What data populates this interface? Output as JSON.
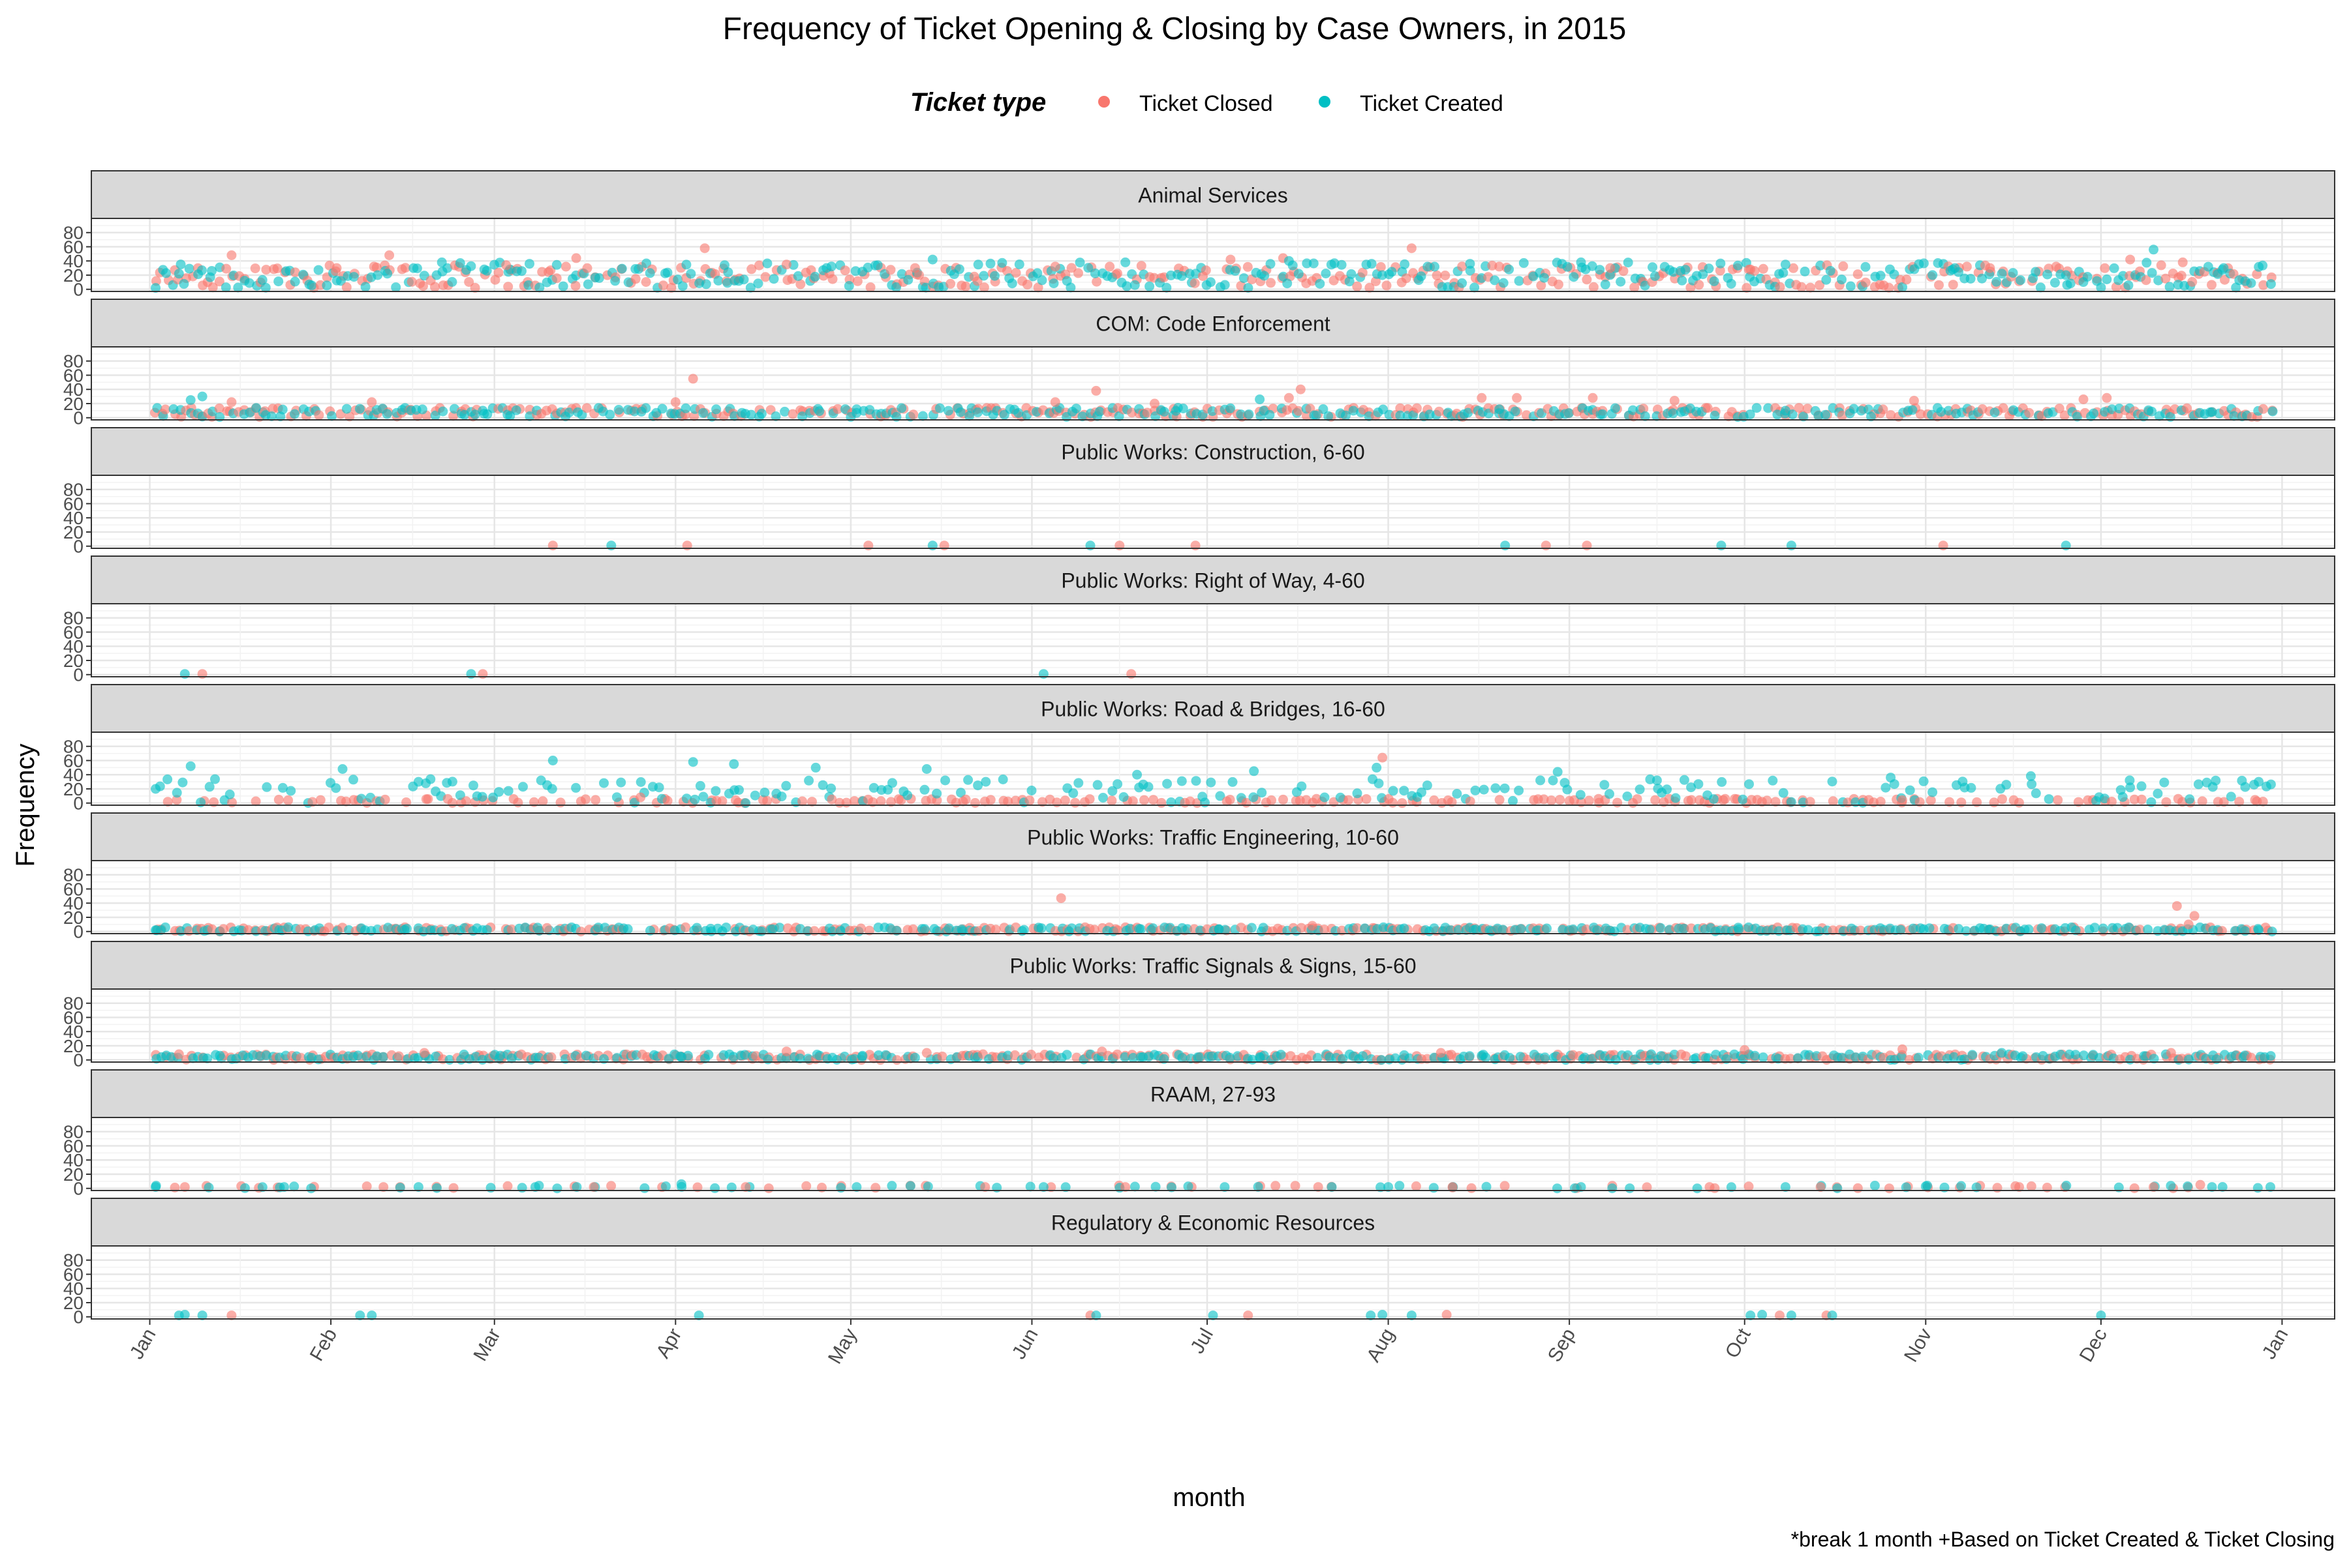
{
  "chart_data": {
    "type": "scatter",
    "title": "Frequency of Ticket Opening & Closing by Case Owners, in 2015",
    "xlabel": "month",
    "ylabel": "Frequency",
    "caption": "*break 1 month +Based on Ticket Created & Ticket Closing",
    "legend": {
      "title": "Ticket type",
      "position": "top",
      "entries": [
        {
          "name": "Ticket Closed",
          "color": "#F8766D"
        },
        {
          "name": "Ticket Created",
          "color": "#00BFC4"
        }
      ]
    },
    "x_ticks": [
      "Jan",
      "Feb",
      "Mar",
      "Apr",
      "May",
      "Jun",
      "Jul",
      "Aug",
      "Sep",
      "Oct",
      "Nov",
      "Dec",
      "Jan"
    ],
    "xlim": [
      "2014-12-22",
      "2016-01-10"
    ],
    "y_ticks": [
      0,
      20,
      40,
      60,
      80
    ],
    "ylim": [
      -3,
      100
    ],
    "grid": true,
    "facets": [
      {
        "name": "Animal Services",
        "series": [
          {
            "name": "Ticket Closed",
            "points": [
              [
                "2015-01-15",
                48
              ],
              [
                "2015-02-11",
                48
              ],
              [
                "2015-03-15",
                44
              ],
              [
                "2015-04-06",
                58
              ],
              [
                "2015-07-05",
                42
              ],
              [
                "2015-07-14",
                44
              ],
              [
                "2015-08-05",
                58
              ],
              [
                "2015-12-06",
                42
              ],
              [
                "2015-02-02",
                30
              ],
              [
                "2015-03-03",
                34
              ],
              [
                "2015-04-20",
                35
              ],
              [
                "2015-05-12",
                30
              ],
              [
                "2015-06-05",
                32
              ],
              [
                "2015-08-20",
                32
              ],
              [
                "2015-09-08",
                30
              ],
              [
                "2015-10-02",
                28
              ],
              [
                "2015-11-12",
                30
              ],
              [
                "2015-12-15",
                38
              ]
            ]
          },
          {
            "name": "Ticket Created",
            "points": [
              [
                "2015-01-02",
                2
              ],
              [
                "2015-01-06",
                22
              ],
              [
                "2015-02-20",
                38
              ],
              [
                "2015-03-07",
                36
              ],
              [
                "2015-05-15",
                42
              ],
              [
                "2015-06-17",
                38
              ],
              [
                "2015-07-15",
                40
              ],
              [
                "2015-08-15",
                36
              ],
              [
                "2015-09-03",
                38
              ],
              [
                "2015-10-08",
                35
              ],
              [
                "2015-11-06",
                30
              ],
              [
                "2015-12-10",
                56
              ],
              [
                "2015-12-22",
                30
              ],
              [
                "2015-02-09",
                20
              ],
              [
                "2015-04-10",
                24
              ],
              [
                "2015-06-28",
                22
              ],
              [
                "2015-09-20",
                26
              ],
              [
                "2015-11-25",
                20
              ]
            ]
          }
        ]
      },
      {
        "name": "COM: Code Enforcement",
        "series": [
          {
            "name": "Ticket Closed",
            "points": [
              [
                "2015-01-15",
                22
              ],
              [
                "2015-02-08",
                22
              ],
              [
                "2015-04-01",
                22
              ],
              [
                "2015-04-04",
                55
              ],
              [
                "2015-06-05",
                22
              ],
              [
                "2015-06-12",
                38
              ],
              [
                "2015-06-22",
                20
              ],
              [
                "2015-07-15",
                28
              ],
              [
                "2015-07-17",
                40
              ],
              [
                "2015-08-17",
                28
              ],
              [
                "2015-08-23",
                28
              ],
              [
                "2015-09-05",
                28
              ],
              [
                "2015-09-19",
                24
              ],
              [
                "2015-10-30",
                24
              ],
              [
                "2015-11-28",
                26
              ],
              [
                "2015-12-02",
                28
              ]
            ]
          },
          {
            "name": "Ticket Created",
            "points": [
              [
                "2015-01-08",
                25
              ],
              [
                "2015-01-10",
                30
              ],
              [
                "2015-02-27",
                10
              ],
              [
                "2015-05-02",
                12
              ],
              [
                "2015-06-26",
                14
              ],
              [
                "2015-07-10",
                26
              ],
              [
                "2015-08-20",
                12
              ],
              [
                "2015-10-08",
                10
              ],
              [
                "2015-12-20",
                8
              ]
            ]
          }
        ]
      },
      {
        "name": "Public Works: Construction, 6-60",
        "series": [
          {
            "name": "Ticket Closed",
            "points": [
              [
                "2015-03-11",
                1
              ],
              [
                "2015-04-03",
                1
              ],
              [
                "2015-05-04",
                1
              ],
              [
                "2015-05-17",
                1
              ],
              [
                "2015-06-16",
                1
              ],
              [
                "2015-06-29",
                1
              ],
              [
                "2015-08-28",
                1
              ],
              [
                "2015-09-04",
                1
              ],
              [
                "2015-11-04",
                1
              ]
            ]
          },
          {
            "name": "Ticket Created",
            "points": [
              [
                "2015-03-21",
                1
              ],
              [
                "2015-05-15",
                1
              ],
              [
                "2015-06-11",
                1
              ],
              [
                "2015-08-21",
                1
              ],
              [
                "2015-09-27",
                1
              ],
              [
                "2015-10-09",
                1
              ],
              [
                "2015-11-25",
                1
              ]
            ]
          }
        ]
      },
      {
        "name": "Public Works: Right of Way, 4-60",
        "series": [
          {
            "name": "Ticket Closed",
            "points": [
              [
                "2015-01-10",
                1
              ],
              [
                "2015-02-27",
                1
              ],
              [
                "2015-06-18",
                1
              ]
            ]
          },
          {
            "name": "Ticket Created",
            "points": [
              [
                "2015-01-07",
                1
              ],
              [
                "2015-02-25",
                1
              ],
              [
                "2015-06-03",
                1
              ]
            ]
          }
        ]
      },
      {
        "name": "Public Works: Road & Bridges, 16-60",
        "series": [
          {
            "name": "Ticket Closed",
            "points": [
              [
                "2015-07-31",
                64
              ],
              [
                "2015-03-26",
                8
              ],
              [
                "2015-09-06",
                6
              ],
              [
                "2015-10-28",
                4
              ]
            ]
          },
          {
            "name": "Ticket Created",
            "points": [
              [
                "2015-01-02",
                20
              ],
              [
                "2015-01-08",
                52
              ],
              [
                "2015-02-03",
                48
              ],
              [
                "2015-03-11",
                60
              ],
              [
                "2015-04-04",
                58
              ],
              [
                "2015-04-11",
                55
              ],
              [
                "2015-04-25",
                50
              ],
              [
                "2015-05-14",
                48
              ],
              [
                "2015-07-09",
                45
              ],
              [
                "2015-07-30",
                50
              ],
              [
                "2015-08-30",
                44
              ],
              [
                "2015-10-26",
                36
              ],
              [
                "2015-11-19",
                38
              ],
              [
                "2015-12-28",
                30
              ],
              [
                "2015-02-16",
                30
              ],
              [
                "2015-06-19",
                40
              ],
              [
                "2015-09-16",
                32
              ],
              [
                "2015-12-06",
                22
              ]
            ]
          }
        ]
      },
      {
        "name": "Public Works: Traffic Engineering, 10-60",
        "series": [
          {
            "name": "Ticket Closed",
            "points": [
              [
                "2015-06-06",
                47
              ],
              [
                "2015-07-19",
                8
              ],
              [
                "2015-12-14",
                36
              ],
              [
                "2015-12-17",
                22
              ],
              [
                "2015-12-16",
                10
              ],
              [
                "2015-03-10",
                5
              ]
            ]
          },
          {
            "name": "Ticket Created",
            "points": [
              [
                "2015-01-02",
                2
              ],
              [
                "2015-02-14",
                4
              ],
              [
                "2015-04-07",
                4
              ],
              [
                "2015-05-20",
                3
              ],
              [
                "2015-07-03",
                3
              ],
              [
                "2015-08-16",
                3
              ],
              [
                "2015-09-30",
                3
              ],
              [
                "2015-11-12",
                3
              ],
              [
                "2015-12-28",
                2
              ]
            ]
          }
        ]
      },
      {
        "name": "Public Works: Traffic Signals & Signs, 15-60",
        "series": [
          {
            "name": "Ticket Closed",
            "points": [
              [
                "2015-01-06",
                8
              ],
              [
                "2015-02-17",
                10
              ],
              [
                "2015-04-20",
                12
              ],
              [
                "2015-05-14",
                10
              ],
              [
                "2015-06-13",
                12
              ],
              [
                "2015-08-10",
                10
              ],
              [
                "2015-10-01",
                14
              ],
              [
                "2015-10-28",
                15
              ],
              [
                "2015-12-13",
                10
              ]
            ]
          },
          {
            "name": "Ticket Created",
            "points": [
              [
                "2015-01-03",
                4
              ],
              [
                "2015-01-13",
                6
              ],
              [
                "2015-03-02",
                6
              ],
              [
                "2015-04-02",
                4
              ],
              [
                "2015-05-03",
                6
              ],
              [
                "2015-06-20",
                4
              ],
              [
                "2015-07-10",
                4
              ],
              [
                "2015-08-17",
                6
              ],
              [
                "2015-09-15",
                8
              ],
              [
                "2015-11-14",
                10
              ],
              [
                "2015-12-29",
                4
              ]
            ]
          }
        ]
      },
      {
        "name": "RAAM, 27-93",
        "series": [
          {
            "name": "Ticket Closed",
            "points": [
              [
                "2015-01-07",
                2
              ],
              [
                "2015-02-10",
                2
              ],
              [
                "2015-03-18",
                2
              ],
              [
                "2015-04-13",
                2
              ],
              [
                "2015-05-24",
                2
              ],
              [
                "2015-06-17",
                2
              ],
              [
                "2015-07-20",
                2
              ],
              [
                "2015-08-12",
                2
              ],
              [
                "2015-09-25",
                2
              ],
              [
                "2015-10-14",
                2
              ],
              [
                "2015-11-17",
                2
              ],
              [
                "2015-12-10",
                2
              ],
              [
                "2015-12-18",
                5
              ]
            ]
          },
          {
            "name": "Ticket Created",
            "points": [
              [
                "2015-01-02",
                2
              ],
              [
                "2015-01-24",
                2
              ],
              [
                "2015-02-16",
                2
              ],
              [
                "2015-03-08",
                2
              ],
              [
                "2015-04-02",
                6
              ],
              [
                "2015-05-02",
                2
              ],
              [
                "2015-06-03",
                2
              ],
              [
                "2015-07-04",
                2
              ],
              [
                "2015-08-01",
                2
              ],
              [
                "2015-09-03",
                2
              ],
              [
                "2015-10-08",
                2
              ],
              [
                "2015-11-01",
                3
              ],
              [
                "2015-12-20",
                2
              ],
              [
                "2015-12-30",
                2
              ]
            ]
          }
        ]
      },
      {
        "name": "Regulatory & Economic Resources",
        "series": [
          {
            "name": "Ticket Closed",
            "points": [
              [
                "2015-01-15",
                2
              ],
              [
                "2015-06-11",
                2
              ],
              [
                "2015-07-08",
                2
              ],
              [
                "2015-08-11",
                3
              ],
              [
                "2015-10-07",
                2
              ],
              [
                "2015-10-15",
                2
              ]
            ]
          },
          {
            "name": "Ticket Created",
            "points": [
              [
                "2015-01-06",
                2
              ],
              [
                "2015-01-07",
                3
              ],
              [
                "2015-01-10",
                2
              ],
              [
                "2015-02-06",
                2
              ],
              [
                "2015-02-08",
                2
              ],
              [
                "2015-04-05",
                2
              ],
              [
                "2015-06-12",
                2
              ],
              [
                "2015-07-02",
                2
              ],
              [
                "2015-07-29",
                2
              ],
              [
                "2015-07-31",
                3
              ],
              [
                "2015-08-05",
                2
              ],
              [
                "2015-10-02",
                2
              ],
              [
                "2015-10-04",
                3
              ],
              [
                "2015-10-09",
                2
              ],
              [
                "2015-10-16",
                2
              ],
              [
                "2015-12-01",
                2
              ]
            ]
          }
        ]
      }
    ]
  }
}
